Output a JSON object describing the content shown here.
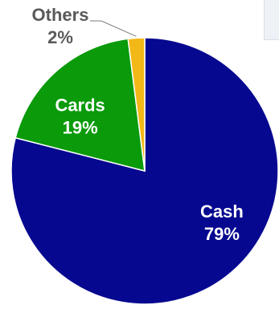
{
  "chart_data": {
    "type": "pie",
    "slices": [
      {
        "label": "Cash",
        "value": 79,
        "value_label": "79%",
        "color": "#06088f",
        "text_color": "#ffffff"
      },
      {
        "label": "Cards",
        "value": 19,
        "value_label": "19%",
        "color": "#0a9a0a",
        "text_color": "#ffffff"
      },
      {
        "label": "Others",
        "value": 2,
        "value_label": "2%",
        "color": "#f2b817",
        "text_color": "#5a5a5a"
      }
    ],
    "start_angle_deg": 0,
    "direction": "clockwise",
    "legend": "none"
  }
}
